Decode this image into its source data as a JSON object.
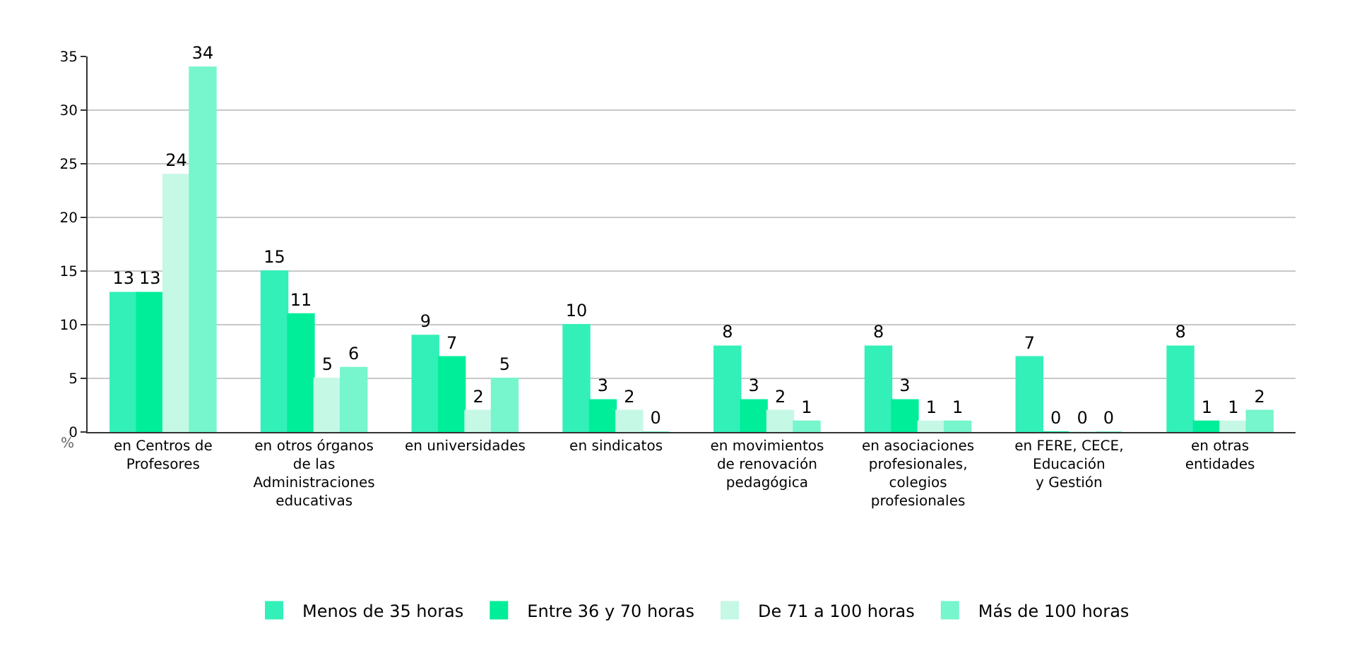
{
  "chart_data": {
    "type": "bar",
    "ylabel": "%",
    "categories": [
      "en Centros de\nProfesores",
      "en otros órganos\nde las\nAdministraciones\neducativas",
      "en universidades",
      "en sindicatos",
      "en movimientos\nde renovación\npedagógica",
      "en asociaciones\nprofesionales,\ncolegios\nprofesionales",
      "en FERE, CECE,\nEducación\ny Gestión",
      "en otras\nentidades"
    ],
    "series": [
      {
        "name": "Menos de 35 horas",
        "color": "#33f0b8",
        "values": [
          13,
          15,
          9,
          10,
          8,
          8,
          7,
          8
        ]
      },
      {
        "name": "Entre 36 y 70 horas",
        "color": "#00ee99",
        "values": [
          13,
          11,
          7,
          3,
          3,
          3,
          0,
          1
        ]
      },
      {
        "name": "De 71 a 100 horas",
        "color": "#c6f8e6",
        "values": [
          24,
          5,
          2,
          2,
          2,
          1,
          0,
          1
        ]
      },
      {
        "name": "Más de 100 horas",
        "color": "#77f5cc",
        "values": [
          34,
          6,
          5,
          0,
          1,
          1,
          0,
          2
        ]
      }
    ],
    "ylim": [
      0,
      35
    ],
    "yticks": [
      0,
      5,
      10,
      15,
      20,
      25,
      30,
      35
    ],
    "grid": "y",
    "legend": "bottom",
    "data_labels": true
  }
}
